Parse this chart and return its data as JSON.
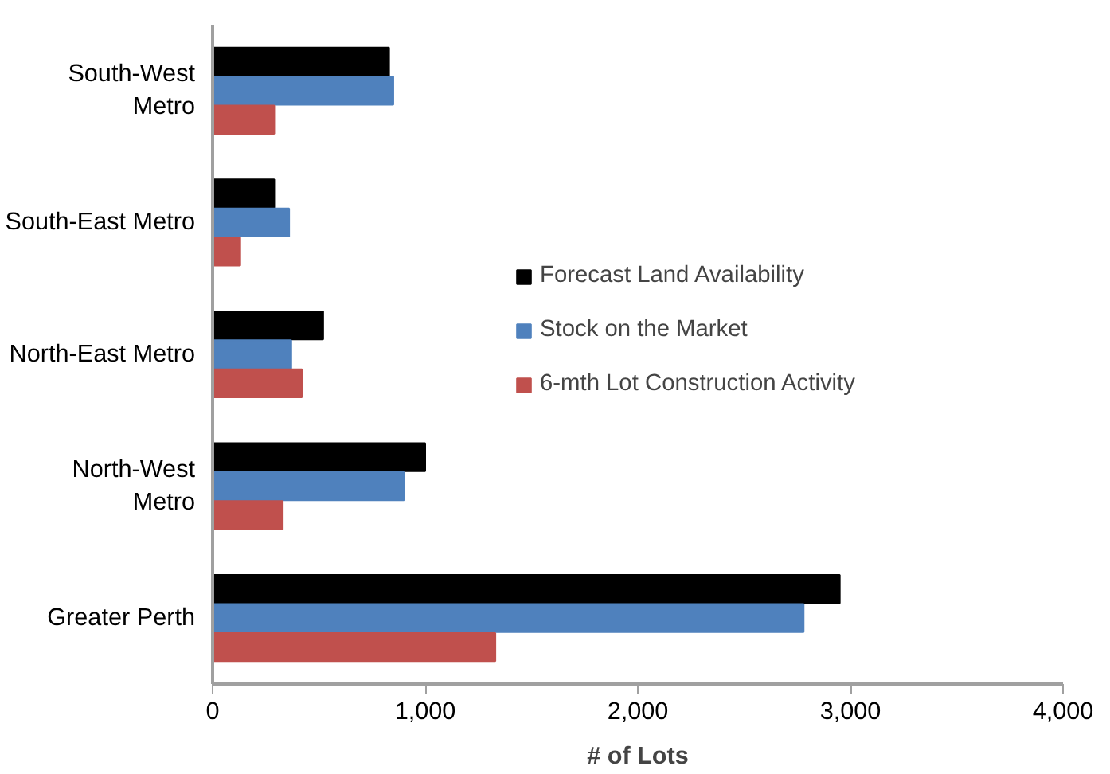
{
  "chart_data": {
    "type": "bar",
    "orientation": "horizontal",
    "xlabel": "# of Lots",
    "categories": [
      "South-West\nMetro",
      "South-East Metro",
      "North-East Metro",
      "North-West\nMetro",
      "Greater Perth"
    ],
    "series": [
      {
        "name": "Forecast Land Availability",
        "color": "#000000",
        "values": [
          830,
          290,
          520,
          1000,
          2950
        ]
      },
      {
        "name": "Stock on the Market",
        "color": "#4f81bd",
        "values": [
          850,
          360,
          370,
          900,
          2780
        ]
      },
      {
        "name": "6-mth Lot Construction Activity",
        "color": "#c0504d",
        "values": [
          290,
          130,
          420,
          330,
          1330
        ]
      }
    ],
    "xlim": [
      0,
      4000
    ],
    "xticks": [
      {
        "value": 0,
        "label": "0"
      },
      {
        "value": 1000,
        "label": "1,000"
      },
      {
        "value": 2000,
        "label": "2,000"
      },
      {
        "value": 3000,
        "label": "3,000"
      },
      {
        "value": 4000,
        "label": "4,000"
      }
    ],
    "grid": false,
    "legend": "right"
  }
}
